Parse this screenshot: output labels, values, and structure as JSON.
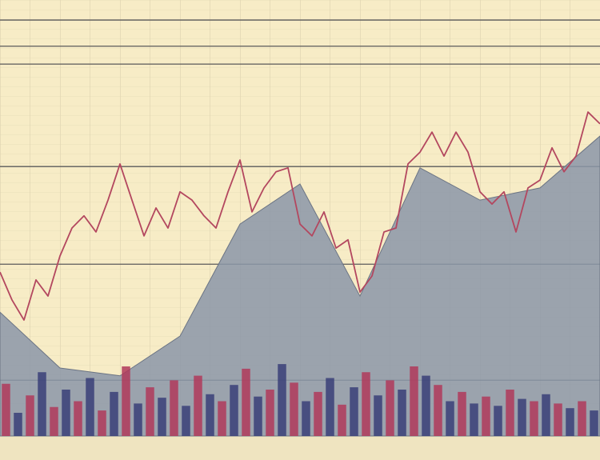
{
  "chart_data": [
    {
      "type": "area",
      "color": "#8b97a8",
      "x": [
        0,
        5,
        10,
        15,
        20,
        25,
        30,
        35,
        40,
        45,
        50
      ],
      "values": [
        28.4,
        15.6,
        13.8,
        22.9,
        48.6,
        57.8,
        32.1,
        61.5,
        54.1,
        56.9,
        68.8
      ],
      "xlim": [
        0,
        50
      ],
      "ylim": [
        0,
        100
      ],
      "yticks": [
        12.8,
        39.4,
        61.8,
        85.3,
        89.4,
        95.4
      ],
      "grid": true
    },
    {
      "type": "line",
      "color": "#b3475f",
      "x": [
        0,
        1,
        2,
        3,
        4,
        5,
        6,
        7,
        8,
        9,
        10,
        11,
        12,
        13,
        14,
        15,
        16,
        17,
        18,
        19,
        20,
        21,
        22,
        23,
        24,
        25,
        26,
        27,
        28,
        29,
        30,
        31,
        32,
        33,
        34,
        35,
        36,
        37,
        38,
        39,
        40,
        41,
        42,
        43,
        44,
        45,
        46,
        47,
        48,
        49,
        50
      ],
      "values": [
        37.6,
        31.2,
        26.6,
        35.8,
        32.1,
        41.3,
        47.7,
        50.5,
        46.8,
        54.1,
        62.4,
        54.1,
        45.9,
        52.3,
        47.7,
        56,
        54.1,
        50.5,
        47.7,
        56,
        63.3,
        51.4,
        56.9,
        60.6,
        61.5,
        48.6,
        45.9,
        51.4,
        43.1,
        45,
        33,
        36.7,
        46.8,
        47.7,
        62.4,
        65.1,
        69.7,
        64.2,
        69.7,
        65.1,
        56,
        53.2,
        56,
        46.8,
        56.9,
        58.7,
        66.1,
        60.6,
        64.2,
        74.3,
        71.6
      ],
      "xlim": [
        0,
        50
      ],
      "ylim": [
        0,
        100
      ]
    },
    {
      "type": "bar",
      "values": [
        45,
        20,
        35,
        55,
        25,
        40,
        30,
        50,
        22,
        38,
        60,
        28,
        42,
        33,
        48,
        26,
        52,
        36,
        30,
        44,
        58,
        34,
        40,
        62,
        46,
        30,
        38,
        50,
        27,
        42,
        55,
        35,
        48,
        40,
        60,
        52,
        44,
        30,
        38,
        28,
        34,
        26,
        40,
        32,
        30,
        36,
        28,
        24,
        30,
        22
      ],
      "colors": [
        "#b0395a",
        "#3a3f78",
        "#b0395a",
        "#3a3f78",
        "#b0395a",
        "#3a3f78",
        "#b0395a",
        "#3a3f78",
        "#b0395a",
        "#3a3f78",
        "#b0395a",
        "#3a3f78",
        "#b0395a",
        "#3a3f78",
        "#b0395a",
        "#3a3f78",
        "#b0395a",
        "#3a3f78",
        "#b0395a",
        "#3a3f78",
        "#b0395a",
        "#3a3f78",
        "#b0395a",
        "#3a3f78",
        "#b0395a",
        "#3a3f78",
        "#b0395a",
        "#3a3f78",
        "#b0395a",
        "#3a3f78",
        "#b0395a",
        "#3a3f78",
        "#b0395a",
        "#3a3f78",
        "#b0395a",
        "#3a3f78",
        "#b0395a",
        "#3a3f78",
        "#b0395a",
        "#3a3f78",
        "#b0395a",
        "#3a3f78",
        "#b0395a",
        "#3a3f78",
        "#b0395a",
        "#3a3f78",
        "#b0395a",
        "#3a3f78",
        "#b0395a",
        "#3a3f78"
      ],
      "ylim": [
        0,
        100
      ]
    }
  ]
}
